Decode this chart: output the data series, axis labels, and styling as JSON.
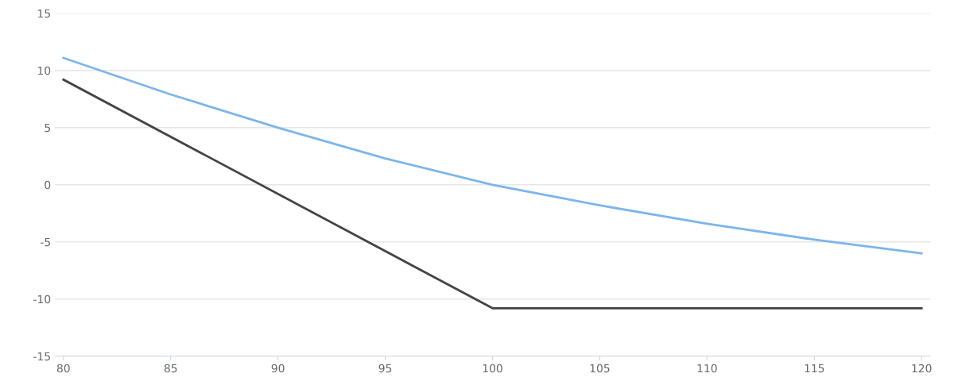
{
  "chart_data": {
    "type": "line",
    "x": [
      80,
      85,
      90,
      95,
      100,
      105,
      110,
      115,
      120
    ],
    "series": [
      {
        "color": "#7cb5ec",
        "values": [
          11.1,
          7.9,
          5.0,
          2.3,
          0,
          -1.8,
          -3.4,
          -4.8,
          -6.0
        ]
      },
      {
        "color": "#434348",
        "x": [
          80,
          100,
          120
        ],
        "values": [
          9.2,
          -10.8,
          -10.8
        ]
      }
    ],
    "xlim": [
      79.6,
      120.4
    ],
    "xticks": [
      80,
      85,
      90,
      95,
      100,
      105,
      110,
      115,
      120
    ],
    "ylim": [
      -15,
      15
    ],
    "yticks": [
      -15,
      -10,
      -5,
      0,
      5,
      10,
      15
    ],
    "grid": "y",
    "legend": false,
    "marker": "none",
    "line_style": "solid"
  }
}
